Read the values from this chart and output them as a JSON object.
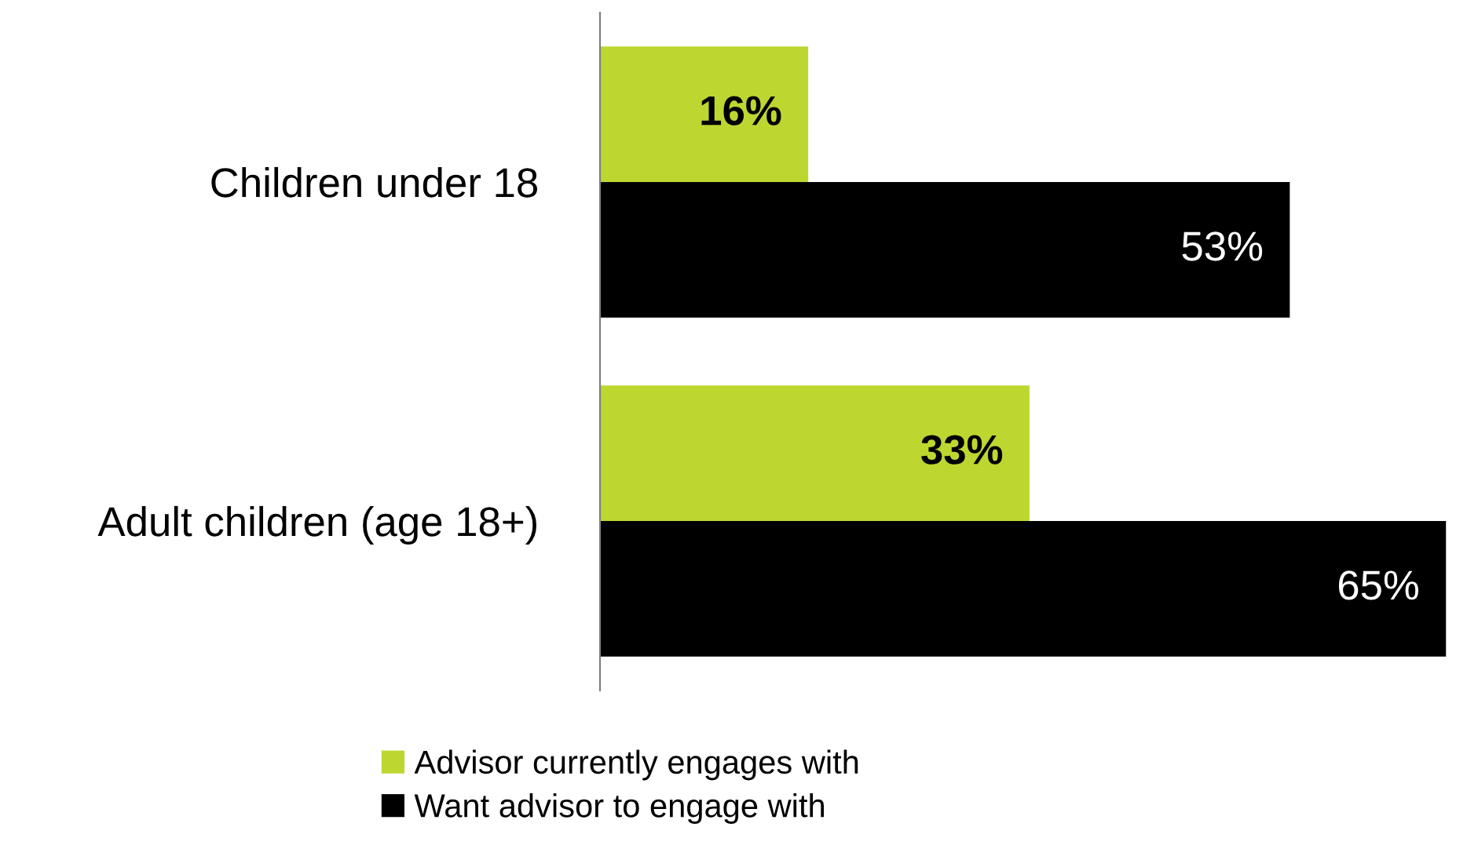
{
  "chart_data": {
    "type": "bar",
    "orientation": "horizontal",
    "categories": [
      "Children under 18",
      "Adult children (age 18+)"
    ],
    "series": [
      {
        "name": "Advisor currently engages with",
        "color": "#bed630",
        "values": [
          16,
          33
        ],
        "value_labels": [
          "16%",
          "33%"
        ]
      },
      {
        "name": "Want advisor to engage with",
        "color": "#000000",
        "values": [
          53,
          65
        ],
        "value_labels": [
          "53%",
          "65%"
        ]
      }
    ],
    "legend": "bottom",
    "grid": false
  }
}
